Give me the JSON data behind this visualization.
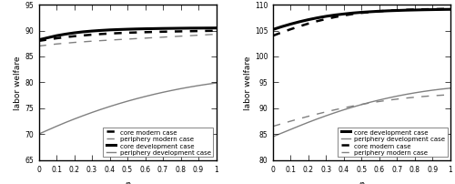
{
  "phi": [
    0.0,
    0.05,
    0.1,
    0.15,
    0.2,
    0.25,
    0.3,
    0.35,
    0.4,
    0.45,
    0.5,
    0.55,
    0.6,
    0.65,
    0.7,
    0.75,
    0.8,
    0.85,
    0.9,
    0.95,
    1.0
  ],
  "panel1": {
    "ylim": [
      65,
      95
    ],
    "yticks": [
      65,
      70,
      75,
      80,
      85,
      90,
      95
    ],
    "xlabel": "φ",
    "ylabel": "labor welfare",
    "core_modern": [
      88.0,
      88.25,
      88.5,
      88.72,
      88.9,
      89.05,
      89.2,
      89.32,
      89.42,
      89.5,
      89.57,
      89.63,
      89.68,
      89.73,
      89.77,
      89.81,
      89.84,
      89.87,
      89.9,
      89.93,
      89.95
    ],
    "periphery_modern": [
      87.0,
      87.2,
      87.4,
      87.55,
      87.7,
      87.82,
      87.94,
      88.05,
      88.15,
      88.25,
      88.34,
      88.44,
      88.53,
      88.63,
      88.72,
      88.82,
      88.91,
      89.0,
      89.1,
      89.19,
      89.28
    ],
    "core_development": [
      88.2,
      88.6,
      89.0,
      89.3,
      89.55,
      89.75,
      89.9,
      90.02,
      90.12,
      90.19,
      90.25,
      90.3,
      90.34,
      90.37,
      90.4,
      90.42,
      90.44,
      90.46,
      90.47,
      90.48,
      90.49
    ],
    "periphery_development": [
      70.0,
      70.75,
      71.5,
      72.22,
      72.9,
      73.55,
      74.17,
      74.76,
      75.32,
      75.85,
      76.35,
      76.82,
      77.26,
      77.68,
      78.07,
      78.43,
      78.77,
      79.08,
      79.37,
      79.63,
      79.87
    ],
    "legend_labels": [
      "core modern case",
      "periphery modern case",
      "core development case",
      "periphery development case"
    ],
    "legend_styles": [
      {
        "color": "#000000",
        "lw": 1.8,
        "ls": "--"
      },
      {
        "color": "#808080",
        "lw": 1.0,
        "ls": "--"
      },
      {
        "color": "#000000",
        "lw": 2.2,
        "ls": "-"
      },
      {
        "color": "#808080",
        "lw": 1.0,
        "ls": "-"
      }
    ]
  },
  "panel2": {
    "ylim": [
      80,
      110
    ],
    "yticks": [
      80,
      85,
      90,
      95,
      100,
      105,
      110
    ],
    "xlabel": "φ",
    "ylabel": "labor welfare",
    "core_development": [
      105.2,
      105.75,
      106.25,
      106.7,
      107.1,
      107.45,
      107.75,
      108.0,
      108.2,
      108.38,
      108.52,
      108.63,
      108.73,
      108.81,
      108.87,
      108.93,
      108.97,
      109.01,
      109.04,
      109.07,
      109.09
    ],
    "periphery_development": [
      84.5,
      85.2,
      85.9,
      86.6,
      87.28,
      87.93,
      88.55,
      89.14,
      89.7,
      90.22,
      90.71,
      91.17,
      91.59,
      91.98,
      92.34,
      92.67,
      92.97,
      93.24,
      93.48,
      93.69,
      93.87
    ],
    "core_modern": [
      104.0,
      104.65,
      105.25,
      105.82,
      106.35,
      106.82,
      107.23,
      107.6,
      107.92,
      108.19,
      108.41,
      108.58,
      108.73,
      108.84,
      108.93,
      109.0,
      109.05,
      109.1,
      109.13,
      109.16,
      109.18
    ],
    "periphery_modern": [
      86.5,
      87.0,
      87.5,
      87.98,
      88.44,
      88.88,
      89.3,
      89.7,
      90.07,
      90.42,
      90.74,
      91.03,
      91.3,
      91.54,
      91.76,
      91.95,
      92.12,
      92.27,
      92.4,
      92.51,
      92.6
    ],
    "legend_labels": [
      "core development case",
      "periphery development case",
      "core modern case",
      "periphery modern case"
    ],
    "legend_styles": [
      {
        "color": "#000000",
        "lw": 2.2,
        "ls": "-"
      },
      {
        "color": "#808080",
        "lw": 1.0,
        "ls": "-"
      },
      {
        "color": "#000000",
        "lw": 1.8,
        "ls": "--"
      },
      {
        "color": "#808080",
        "lw": 1.0,
        "ls": "--"
      }
    ]
  },
  "label_fontsize": 6.5,
  "tick_fontsize": 5.5,
  "legend_fontsize": 5.0,
  "xticks": [
    0,
    0.1,
    0.2,
    0.3,
    0.4,
    0.5,
    0.6,
    0.7,
    0.8,
    0.9,
    1.0
  ],
  "xticklabels": [
    "0",
    "0.1",
    "0.2",
    "0.3",
    "0.4",
    "0.5",
    "0.6",
    "0.7",
    "0.8",
    "0.9",
    "1"
  ]
}
